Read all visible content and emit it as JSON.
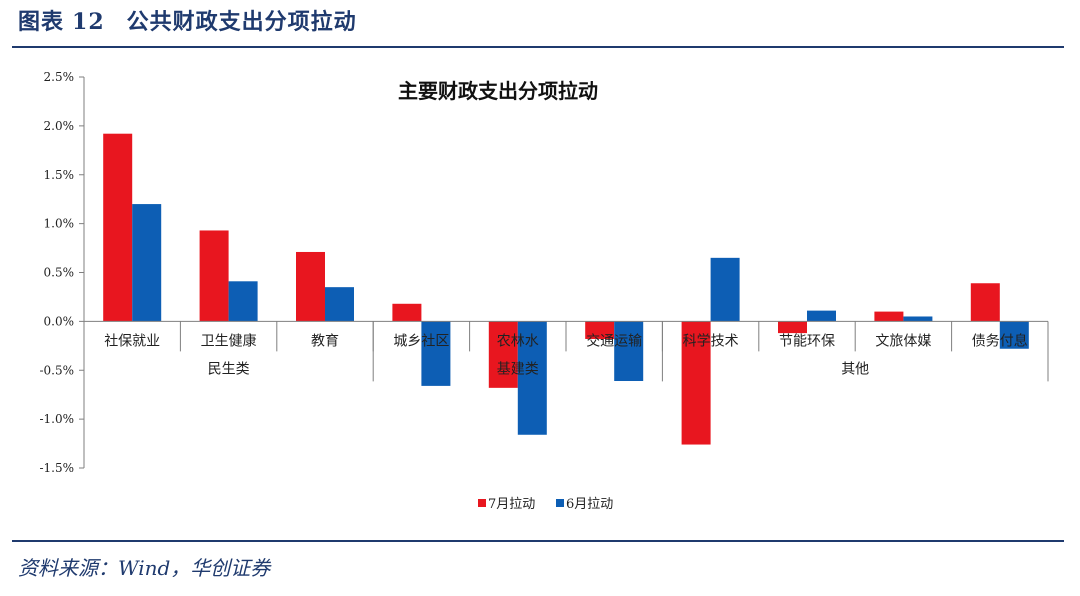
{
  "figure": {
    "label": "图表",
    "number": "12",
    "caption": "公共财政支出分项拉动",
    "source": "资料来源：Wind，华创证券"
  },
  "colors": {
    "series1": "#e8161f",
    "series2": "#0d5eb4",
    "rule": "#1f3a6e",
    "axis": "#7f7f7f"
  },
  "chart_data": {
    "type": "bar",
    "title": "主要财政支出分项拉动",
    "categories": [
      "社保就业",
      "卫生健康",
      "教育",
      "城乡社区",
      "农林水",
      "交通运输",
      "科学技术",
      "节能环保",
      "文旅体媒",
      "债务付息"
    ],
    "groups": [
      {
        "label": "民生类",
        "from": 0,
        "to": 2
      },
      {
        "label": "基建类",
        "from": 3,
        "to": 5
      },
      {
        "label": "其他",
        "from": 6,
        "to": 9
      }
    ],
    "series": [
      {
        "name": "7月拉动",
        "values": [
          1.92,
          0.93,
          0.71,
          0.18,
          -0.68,
          -0.18,
          -1.26,
          -0.12,
          0.1,
          0.39
        ]
      },
      {
        "name": "6月拉动",
        "values": [
          1.2,
          0.41,
          0.35,
          -0.66,
          -1.16,
          -0.61,
          0.65,
          0.11,
          0.05,
          -0.28
        ]
      }
    ],
    "ylim": [
      -1.5,
      2.5
    ],
    "yticks": [
      2.5,
      2.0,
      1.5,
      1.0,
      0.5,
      0.0,
      -0.5,
      -1.0,
      -1.5
    ],
    "ytick_labels": [
      "2.5%",
      "2.0%",
      "1.5%",
      "1.0%",
      "0.5%",
      "0.0%",
      "-0.5%",
      "-1.0%",
      "-1.5%"
    ],
    "xlabel": "",
    "ylabel": "",
    "legend": "bottom-center",
    "grid": false
  }
}
